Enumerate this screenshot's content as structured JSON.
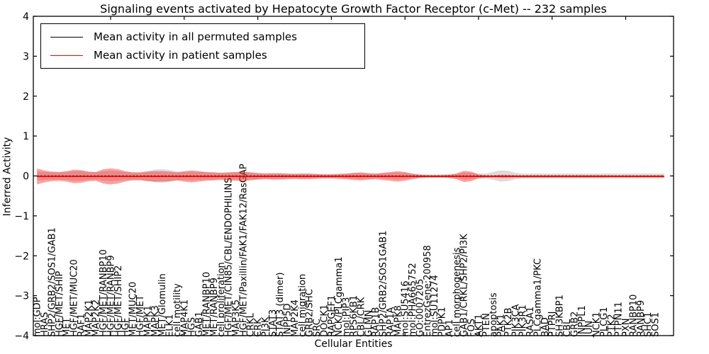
{
  "figure": {
    "title": "Signaling events activated by Hepatocyte Growth Factor Receptor (c-Met) -- 232 samples"
  },
  "legend": {
    "entries": [
      {
        "label": "Mean activity in all permuted samples",
        "color": "#000000"
      },
      {
        "label": "Mean activity in patient samples",
        "color": "#ff0000"
      }
    ]
  },
  "chart_data": {
    "type": "line",
    "title": "Signaling events activated by Hepatocyte Growth Factor Receptor (c-Met) -- 232 samples",
    "xlabel": "Cellular Entities",
    "ylabel": "Inferred Activity",
    "ylim": [
      -4,
      4
    ],
    "yticks": [
      -4,
      -3,
      -2,
      -1,
      0,
      1,
      2,
      3,
      4
    ],
    "xtick_indices": [
      10,
      20,
      30,
      40,
      50,
      60,
      70,
      80
    ],
    "grid": false,
    "legend_position": "upper left",
    "entities": [
      "mol:GDP",
      "HRAS",
      "SHP2/GRB2/SOS1/GAB1",
      "HGF/MET/SHIP",
      "MET",
      "HGF/MET/MUC20",
      "RAF1",
      "MAP2K1",
      "MAP2K2",
      "HGF/MET/RANBP10",
      "HGF/MET/RANBP9",
      "HGF/MET/SHIP2",
      "HGF",
      "MET/MUC20",
      "HGF/MET",
      "MAPK1",
      "MAPK3",
      "MET/Glomulin",
      "ELK1",
      "cell motility",
      "MAP4K1",
      "HGS",
      "GAB1",
      "MET/RANBP10",
      "MET/RANBP9",
      "cell proliferation",
      "HGF/MET/CIN85/CBL/ENDOPHILINS",
      "MAP3K5",
      "HGF/MET/Paxillin/FAK1/FAK12/RasGAP",
      "CRKL",
      "CRK",
      "PI3K",
      "STAT3",
      "STAT3 (dimer)",
      "INPP5D",
      "MAP2K4",
      "cell migration",
      "GRB2/SHC",
      "SRC",
      "DOCK1",
      "RAPGEF1",
      "NCK/PLCgamma1",
      "mol:PIP3",
      "RPS6KB1",
      "CBL/CRK",
      "GLMN",
      "RAP1B",
      "SHP2/GRB2/SOS1GAB1",
      "RAP1A",
      "MAPK8",
      "mol:SU5416",
      "mol:PHA665752",
      "GO:0007205",
      "EntrezGene:200958",
      "mol:SU11274",
      "PDPK1",
      "AP1",
      "cell morphogenesis",
      "GAB1/CRKL/SHP2/PI3K",
      "FOS",
      "AKT1",
      "PTEN",
      "apoptosis",
      "PAK1",
      "PTK2B",
      "PIK3CA",
      "PIK3R1",
      "RASA1",
      "PLCgamma1/PKC",
      "BAD",
      "PTPRJ",
      "SH3KBP1",
      "CBL",
      "GRB2",
      "INPPL1",
      "JUN",
      "NCK1",
      "PLCG1",
      "PTK2",
      "PTPN11",
      "PXN",
      "RANBP10",
      "RANBP9",
      "SHC1",
      "SOS1"
    ],
    "series": [
      {
        "name": "Mean activity in all permuted samples",
        "color": "#000000",
        "style": "dashed",
        "values": 0,
        "band_halfwidth": [
          0.11,
          0.1,
          0.09,
          0.09,
          0.1,
          0.12,
          0.12,
          0.1,
          0.09,
          0.12,
          0.13,
          0.12,
          0.1,
          0.09,
          0.09,
          0.12,
          0.16,
          0.17,
          0.15,
          0.11,
          0.1,
          0.11,
          0.1,
          0.09,
          0.09,
          0.08,
          0.09,
          0.09,
          0.1,
          0.09,
          0.08,
          0.07,
          0.07,
          0.07,
          0.06,
          0.06,
          0.06,
          0.06,
          0.05,
          0.05,
          0.05,
          0.05,
          0.06,
          0.07,
          0.08,
          0.07,
          0.06,
          0.07,
          0.08,
          0.09,
          0.08,
          0.06,
          0.05,
          0.04,
          0.04,
          0.04,
          0.05,
          0.06,
          0.09,
          0.08,
          0.06,
          0.06,
          0.1,
          0.14,
          0.13,
          0.08,
          0.06,
          0.06,
          0.06,
          0.06,
          0.06,
          0.06,
          0.06,
          0.06,
          0.06,
          0.06,
          0.06,
          0.06,
          0.06,
          0.06,
          0.06,
          0.06,
          0.06,
          0.06,
          0.06
        ],
        "band_color": "#999999",
        "band_opacity": 0.35
      },
      {
        "name": "Mean activity in patient samples",
        "color": "#ff0000",
        "style": "solid",
        "values": -0.012,
        "band_halfwidth": [
          0.2,
          0.15,
          0.12,
          0.11,
          0.13,
          0.17,
          0.16,
          0.12,
          0.11,
          0.18,
          0.2,
          0.18,
          0.13,
          0.1,
          0.1,
          0.12,
          0.13,
          0.13,
          0.12,
          0.1,
          0.13,
          0.15,
          0.13,
          0.11,
          0.1,
          0.09,
          0.1,
          0.11,
          0.12,
          0.1,
          0.08,
          0.07,
          0.08,
          0.08,
          0.07,
          0.06,
          0.07,
          0.07,
          0.06,
          0.05,
          0.05,
          0.06,
          0.07,
          0.09,
          0.1,
          0.08,
          0.07,
          0.09,
          0.11,
          0.13,
          0.11,
          0.07,
          0.04,
          0.03,
          0.03,
          0.03,
          0.04,
          0.07,
          0.14,
          0.12,
          0.05,
          0.03,
          0.03,
          0.04,
          0.04,
          0.03,
          0.03,
          0.03,
          0.03,
          0.03,
          0.03,
          0.03,
          0.03,
          0.03,
          0.03,
          0.03,
          0.03,
          0.03,
          0.025,
          0.025,
          0.025,
          0.025,
          0.025,
          0.025,
          0.025
        ]
      }
    ]
  }
}
